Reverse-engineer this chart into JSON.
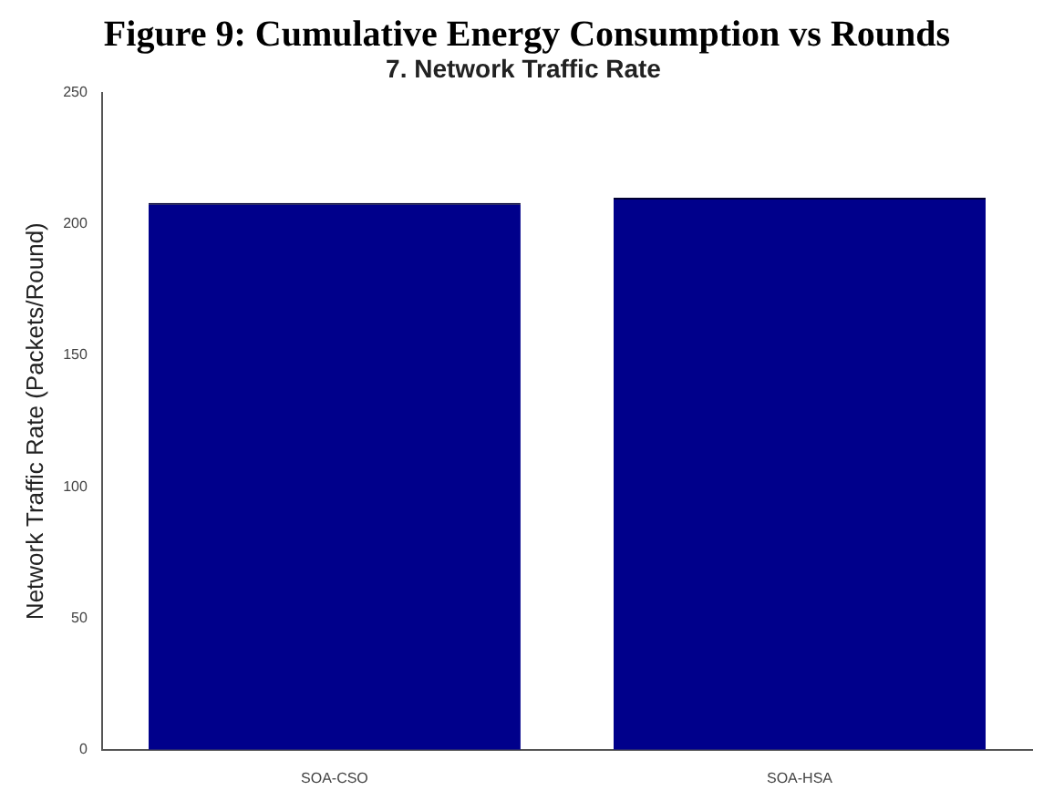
{
  "chart_data": {
    "type": "bar",
    "title": "Figure 9: Cumulative Energy Consumption vs Rounds",
    "subtitle": "7. Network Traffic Rate",
    "ylabel": "Network Traffic Rate (Packets/Round)",
    "categories": [
      "SOA-CSO",
      "SOA-HSA"
    ],
    "values": [
      208,
      210
    ],
    "color": "#00008b",
    "ylim": [
      0,
      250
    ],
    "yticks": [
      0,
      50,
      100,
      150,
      200,
      250
    ],
    "grid": false,
    "legend": false
  }
}
